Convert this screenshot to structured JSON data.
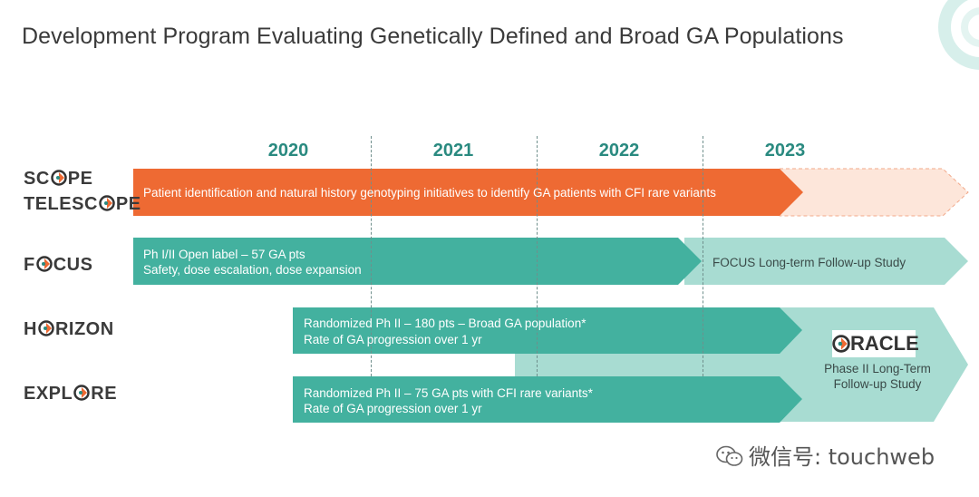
{
  "title": "Development Program Evaluating Genetically Defined and Broad GA Populations",
  "years": [
    "2020",
    "2021",
    "2022",
    "2023"
  ],
  "programs": {
    "scope": {
      "pre": "SC",
      "post": "PE"
    },
    "telescope": {
      "pre": "TELESC",
      "post": "PE"
    },
    "focus": {
      "pre": "F",
      "post": "CUS"
    },
    "horizon": {
      "pre": "H",
      "post": "RIZON"
    },
    "explore": {
      "pre": "EXPL",
      "post": "RE"
    }
  },
  "bars": {
    "scope": "Patient identification and natural history genotyping initiatives to identify GA patients with CFI rare variants",
    "focus_line1": "Ph I/II Open label – 57 GA pts",
    "focus_line2": "Safety, dose escalation, dose expansion",
    "focus_followup": "FOCUS Long-term Follow-up Study",
    "horizon_line1": "Randomized Ph II – 180 pts – Broad GA population*",
    "horizon_line2": "Rate of GA progression over 1 yr",
    "explore_line1": "Randomized Ph II – 75 GA pts with CFI rare variants*",
    "explore_line2": "Rate of GA progression over 1 yr"
  },
  "oracle": {
    "pre": "",
    "post": "RACLE",
    "sub_line1": "Phase II Long-Term",
    "sub_line2": "Follow-up Study"
  },
  "watermark": "微信号: touchweb",
  "colors": {
    "orange": "#ee6a33",
    "teal": "#43b19f",
    "teal_light": "#a8dcd2",
    "year": "#2a8a80"
  }
}
